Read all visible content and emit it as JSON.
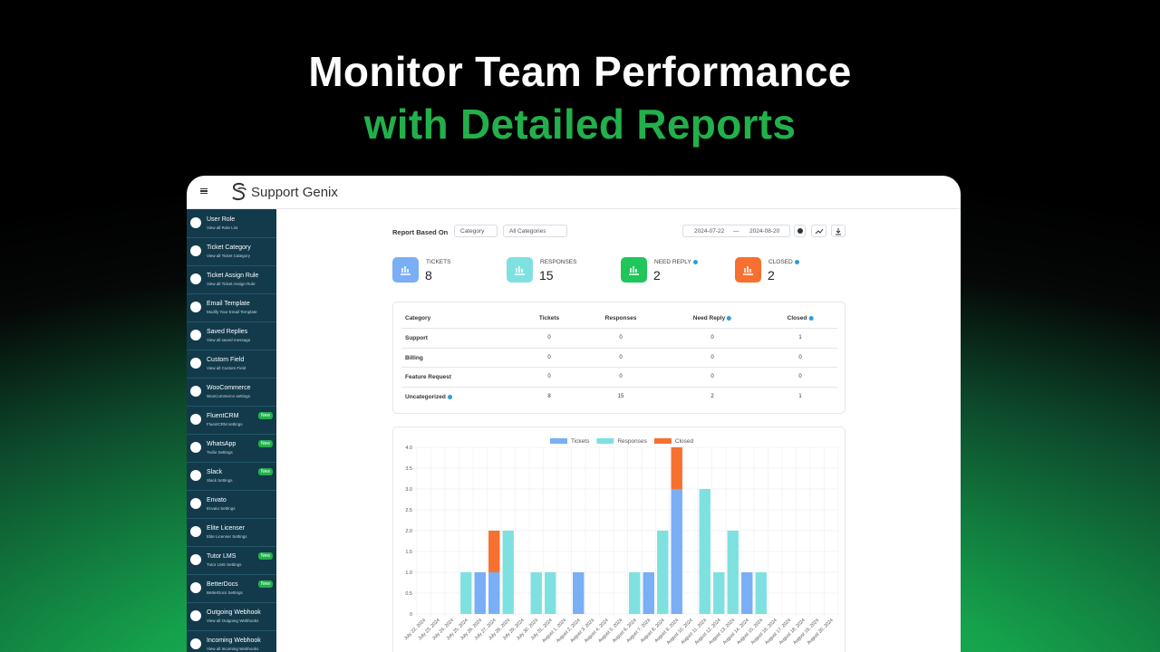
{
  "hero": {
    "line1": "Monitor Team Performance",
    "line2": "with Detailed Reports"
  },
  "app": {
    "brand": "Support Genix"
  },
  "sidebar": [
    {
      "title": "User Role",
      "subtitle": "View all Role List"
    },
    {
      "title": "Ticket Category",
      "subtitle": "View all Ticket Category"
    },
    {
      "title": "Ticket Assign Rule",
      "subtitle": "View all Ticket Assign Rule"
    },
    {
      "title": "Email Template",
      "subtitle": "Modify Your Email Template"
    },
    {
      "title": "Saved Replies",
      "subtitle": "View all saved message"
    },
    {
      "title": "Custom Field",
      "subtitle": "View all Custom Field"
    },
    {
      "title": "WooCommerce",
      "subtitle": "WooCommerce settings"
    },
    {
      "title": "FluentCRM",
      "subtitle": "FluentCRM settings",
      "badge": "New"
    },
    {
      "title": "WhatsApp",
      "subtitle": "Twilio Settings",
      "badge": "New"
    },
    {
      "title": "Slack",
      "subtitle": "Slack Settings",
      "badge": "New"
    },
    {
      "title": "Envato",
      "subtitle": "Envato Settings"
    },
    {
      "title": "Elite Licenser",
      "subtitle": "Elite Licenser Settings"
    },
    {
      "title": "Tutor LMS",
      "subtitle": "Tutor LMS Settings",
      "badge": "New"
    },
    {
      "title": "BetterDocs",
      "subtitle": "BetterDocs Settings",
      "badge": "New"
    },
    {
      "title": "Outgoing Webhook",
      "subtitle": "View all Outgoing Webhooks"
    },
    {
      "title": "Incoming Webhook",
      "subtitle": "View all Incoming Webhooks"
    }
  ],
  "controls": {
    "label": "Report Based On",
    "based_on": "Category",
    "filter": "All Categories",
    "date_from": "2024-07-22",
    "date_sep": "—",
    "date_to": "2024-08-20"
  },
  "stats": [
    {
      "label": "TICKETS",
      "value": "8",
      "color": "#7aaef5"
    },
    {
      "label": "RESPONSES",
      "value": "15",
      "color": "#7fe0e0"
    },
    {
      "label": "NEED REPLY",
      "value": "2",
      "color": "#1fc65a",
      "info": true
    },
    {
      "label": "CLOSED",
      "value": "2",
      "color": "#f7702f",
      "info": true
    }
  ],
  "table": {
    "headers": [
      "Category",
      "Tickets",
      "Responses",
      "Need Reply",
      "Closed"
    ],
    "rows": [
      [
        "Support",
        "0",
        "0",
        "0",
        "1"
      ],
      [
        "Billing",
        "0",
        "0",
        "0",
        "0"
      ],
      [
        "Feature Request",
        "0",
        "0",
        "0",
        "0"
      ],
      [
        "Uncategorized",
        "8",
        "15",
        "2",
        "1"
      ]
    ]
  },
  "chart_data": {
    "type": "bar",
    "stacked": true,
    "categories": [
      "July 22, 2024",
      "July 23, 2024",
      "July 24, 2024",
      "July 25, 2024",
      "July 26, 2024",
      "July 27, 2024",
      "July 28, 2024",
      "July 29, 2024",
      "July 30, 2024",
      "July 31, 2024",
      "August 1, 2024",
      "August 2, 2024",
      "August 3, 2024",
      "August 4, 2024",
      "August 5, 2024",
      "August 6, 2024",
      "August 7, 2024",
      "August 8, 2024",
      "August 9, 2024",
      "August 10, 2024",
      "August 11, 2024",
      "August 12, 2024",
      "August 13, 2024",
      "August 14, 2024",
      "August 15, 2024",
      "August 16, 2024",
      "August 17, 2024",
      "August 18, 2024",
      "August 19, 2024",
      "August 20, 2024"
    ],
    "series": [
      {
        "name": "Tickets",
        "color": "#7aaef5",
        "values": [
          0,
          0,
          0,
          0,
          1,
          1,
          0,
          0,
          0,
          0,
          0,
          1,
          0,
          0,
          0,
          0,
          1,
          0,
          3,
          0,
          0,
          0,
          0,
          1,
          0,
          0,
          0,
          0,
          0,
          0
        ]
      },
      {
        "name": "Responses",
        "color": "#7fe0e0",
        "values": [
          0,
          0,
          0,
          1,
          0,
          0,
          2,
          0,
          1,
          1,
          0,
          0,
          0,
          0,
          0,
          1,
          0,
          2,
          0,
          0,
          3,
          1,
          2,
          0,
          1,
          0,
          0,
          0,
          0,
          0
        ]
      },
      {
        "name": "Closed",
        "color": "#f7702f",
        "values": [
          0,
          0,
          0,
          0,
          0,
          1,
          0,
          0,
          0,
          0,
          0,
          0,
          0,
          0,
          0,
          0,
          0,
          0,
          1,
          0,
          0,
          0,
          0,
          0,
          0,
          0,
          0,
          0,
          0,
          0
        ]
      }
    ],
    "ylim": [
      0,
      4
    ],
    "yticks": [
      0,
      0.5,
      {
        "value": 1,
        "label": "1.0"
      },
      1.5,
      {
        "value": 2,
        "label": "2.0"
      },
      2.5,
      {
        "value": 3,
        "label": "3.0"
      },
      3.5,
      {
        "value": 4,
        "label": "4.0"
      }
    ],
    "grid": true,
    "legend": "top"
  }
}
